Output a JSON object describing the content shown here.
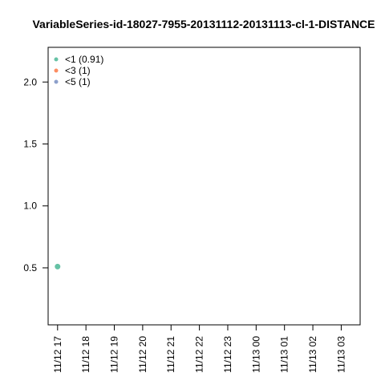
{
  "chart_data": {
    "type": "scatter",
    "title": "VariableSeries-id-18027-7955-20131112-20131113-cl-1-DISTANCE",
    "xlabel": "",
    "ylabel": "",
    "x_tick_labels": [
      "11/12 17",
      "11/12 18",
      "11/12 19",
      "11/12 20",
      "11/12 21",
      "11/12 22",
      "11/12 23",
      "11/13 00",
      "11/13 01",
      "11/13 02",
      "11/13 03"
    ],
    "y_ticks": [
      0.5,
      1.0,
      1.5,
      2.0
    ],
    "y_tick_labels": [
      "0.5",
      "1.0",
      "1.5",
      "2.0"
    ],
    "xlim": [
      "11/12 16:40",
      "11/13 03:40"
    ],
    "ylim": [
      0.04,
      2.28
    ],
    "grid": false,
    "legend_position": "top-left",
    "series": [
      {
        "name": "<1 (0.91)",
        "color": "#66c2a5",
        "points": [
          {
            "x": "11/12 17:00",
            "y": 0.51
          }
        ]
      },
      {
        "name": "<3 (1)",
        "color": "#fc8d62",
        "points": []
      },
      {
        "name": "<5 (1)",
        "color": "#8da0cb",
        "points": []
      }
    ]
  }
}
